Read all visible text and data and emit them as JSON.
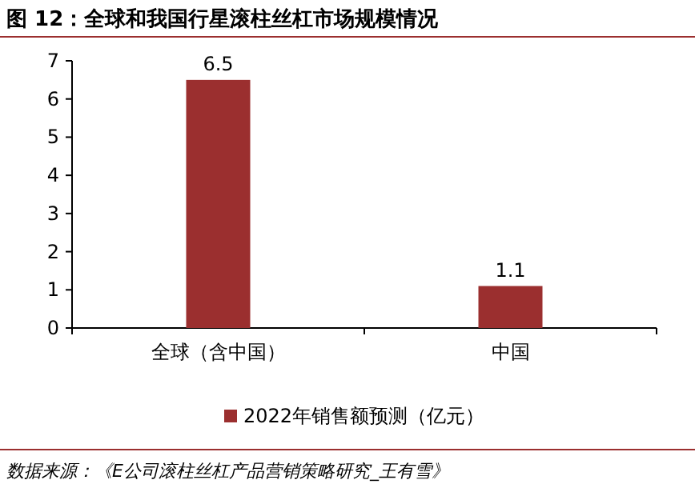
{
  "chart_data": {
    "type": "bar",
    "title": "图 12：全球和我国行星滚柱丝杠市场规模情况",
    "categories": [
      "全球（含中国）",
      "中国"
    ],
    "series": [
      {
        "name": "2022年销售额预测（亿元）",
        "color": "#9b2f2f",
        "values": [
          6.5,
          1.1
        ]
      }
    ],
    "ylim": [
      0,
      7
    ],
    "yticks": [
      0,
      1,
      2,
      3,
      4,
      5,
      6,
      7
    ],
    "data_labels": true,
    "legend": "bottom",
    "grid": false,
    "annotations": [
      "数据来源：《E公司滚柱丝杠产品营销策略研究_王有雪》"
    ]
  }
}
